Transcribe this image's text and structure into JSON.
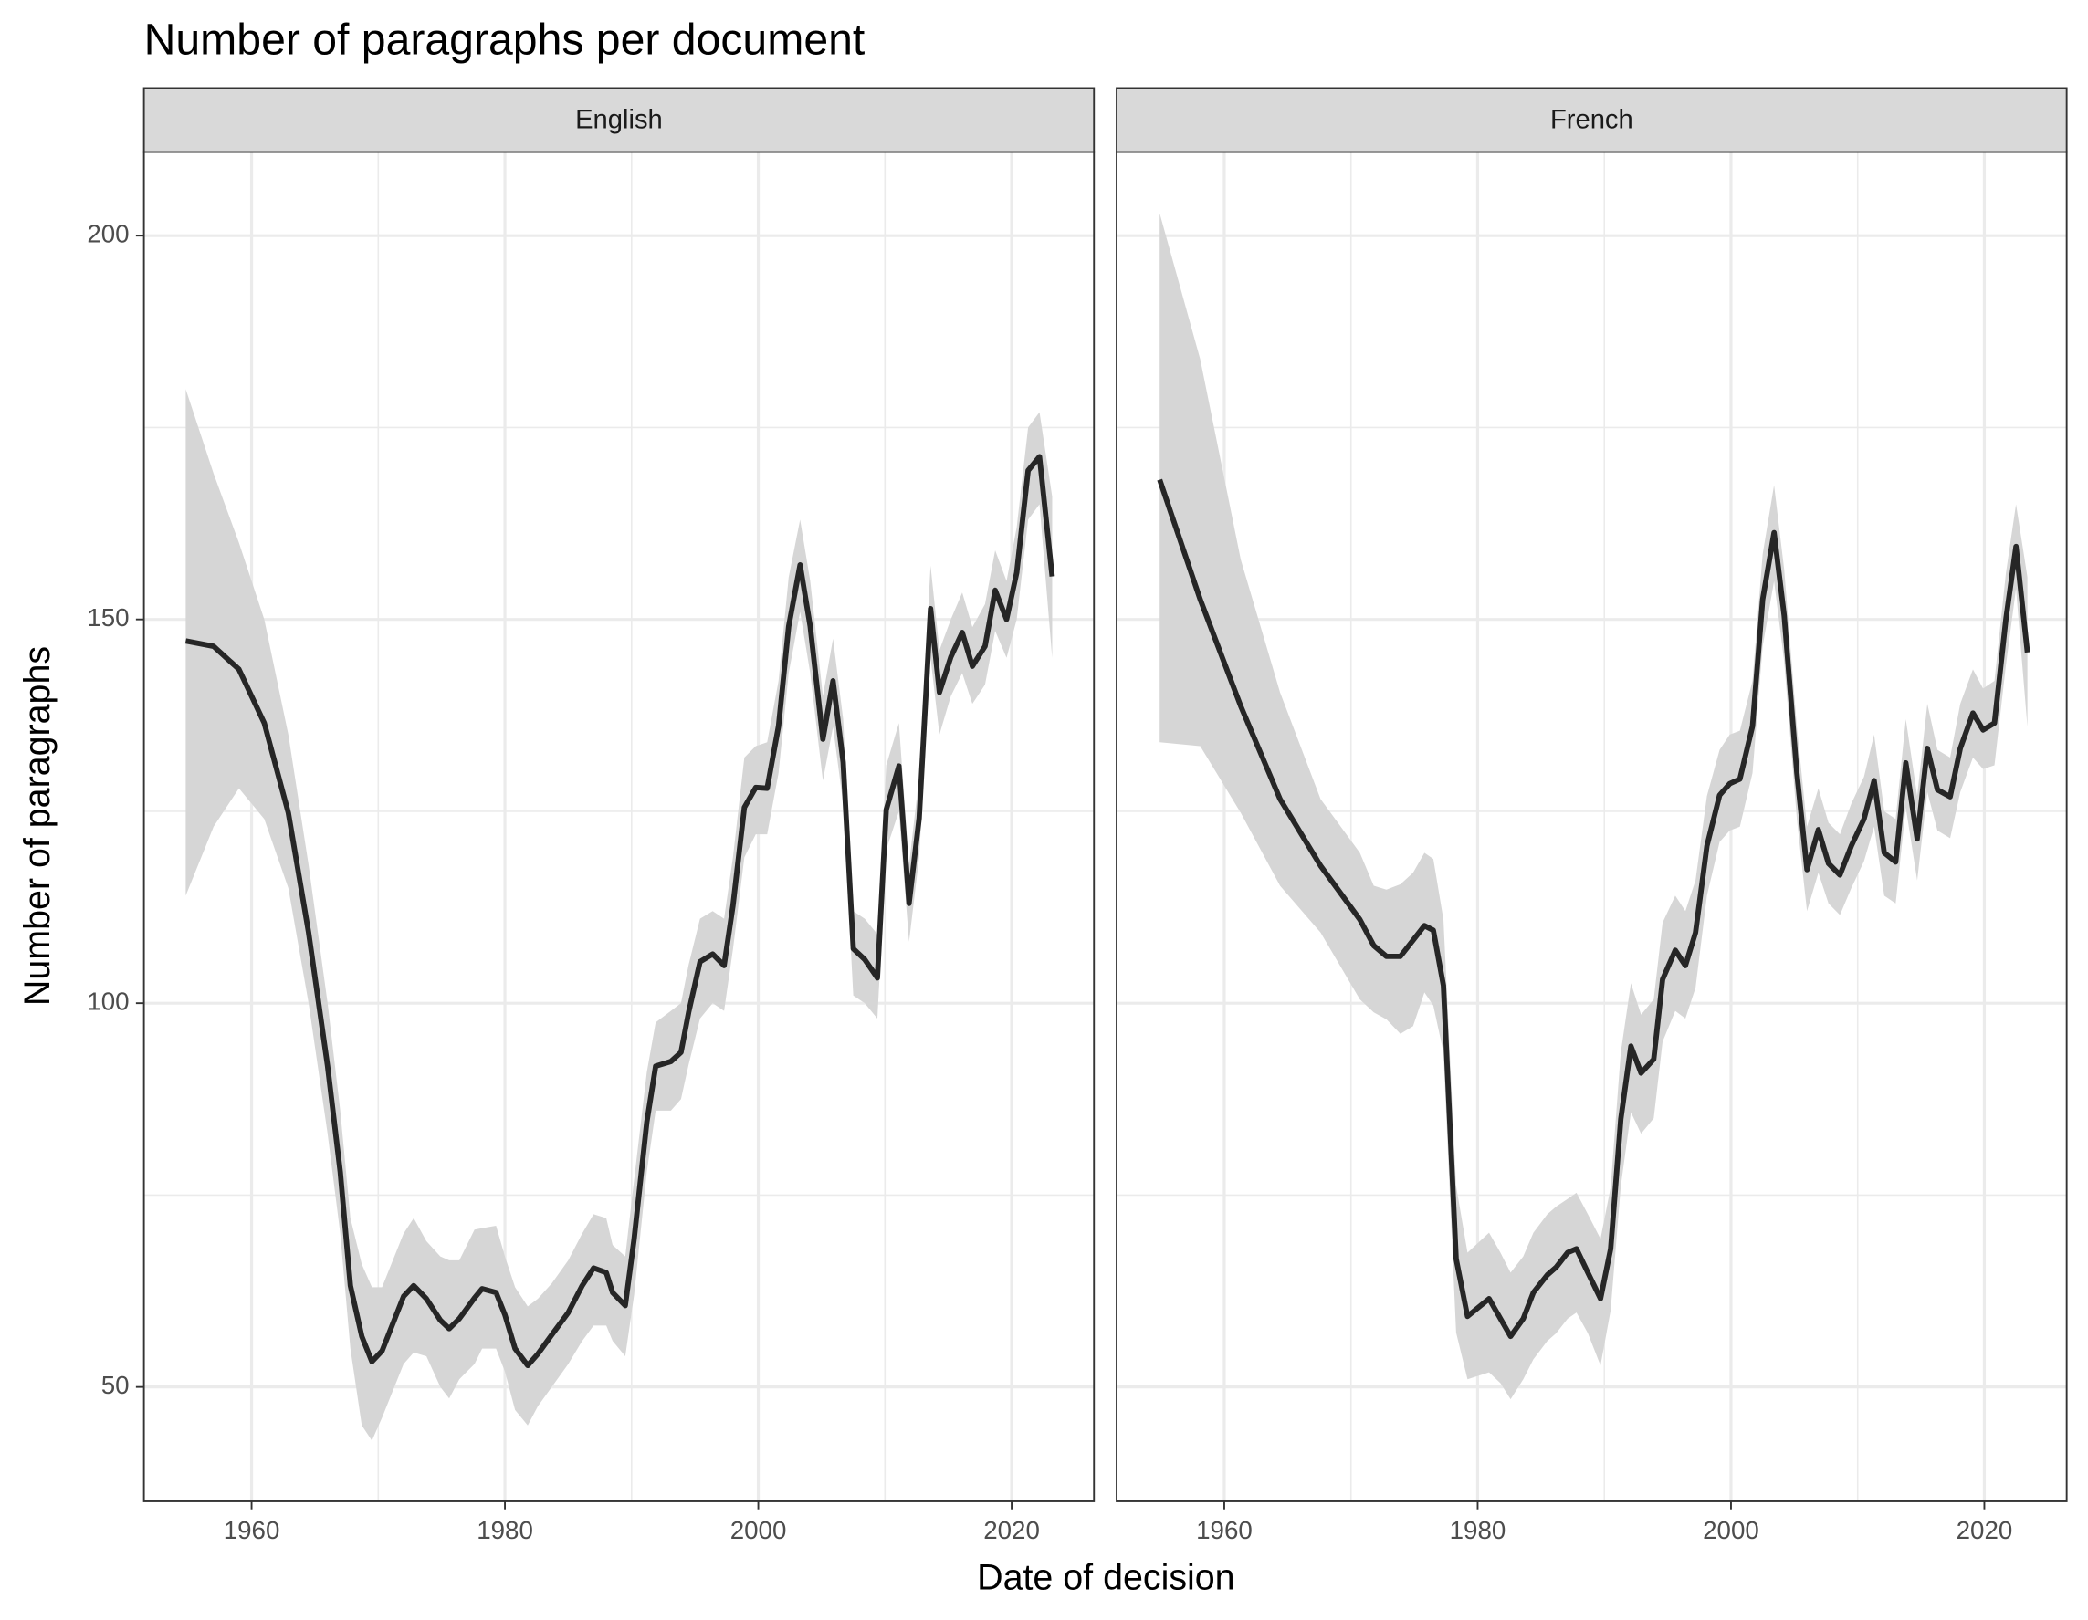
{
  "chart_data": {
    "type": "line",
    "title": "Number of paragraphs per document",
    "x_label": "Date of decision",
    "y_label": "Number of paragraphs",
    "xlim": [
      1951.5,
      2026.5
    ],
    "ylim": [
      35.1,
      210.9
    ],
    "xticks": [
      1960,
      1980,
      2000,
      2020
    ],
    "yticks": [
      50,
      100,
      150,
      200
    ],
    "x_minor_grid": [
      1970,
      1990,
      2010
    ],
    "y_minor_grid": [
      75,
      125,
      175
    ],
    "grid": true,
    "line_color": "#262626",
    "ribbon_color": "#d6d6d6",
    "facets": [
      {
        "name": "English",
        "x": [
          1954.8,
          1957,
          1959,
          1961,
          1962.9,
          1964.5,
          1966,
          1967,
          1967.8,
          1968.7,
          1969.5,
          1970.3,
          1972,
          1972.8,
          1973.8,
          1974.9,
          1975.6,
          1976.4,
          1977.6,
          1978.2,
          1979.3,
          1980,
          1980.8,
          1981.8,
          1982.6,
          1983.7,
          1985,
          1986.1,
          1987,
          1988,
          1988.5,
          1989.5,
          1990.2,
          1991.2,
          1991.9,
          1993.1,
          1993.9,
          1994.5,
          1995.4,
          1996.4,
          1997.3,
          1998,
          1998.9,
          1999.8,
          2000.7,
          2001.6,
          2002.4,
          2003.3,
          2004.1,
          2005.1,
          2005.9,
          2006.7,
          2007.5,
          2008.4,
          2009.4,
          2010.1,
          2011.1,
          2011.9,
          2012.7,
          2013.6,
          2014.3,
          2015.2,
          2016.1,
          2016.9,
          2017.9,
          2018.7,
          2019.6,
          2020.4,
          2021.3,
          2022.2,
          2023.2
        ],
        "values": [
          147.2,
          146.5,
          143.5,
          136.5,
          124.8,
          109.2,
          91.8,
          78,
          63.2,
          56.6,
          53.3,
          54.7,
          61.8,
          63.2,
          61.5,
          58.7,
          57.6,
          58.9,
          61.6,
          62.8,
          62.3,
          59.4,
          55,
          52.8,
          54.3,
          56.8,
          59.7,
          63.2,
          65.5,
          64.9,
          62.3,
          60.6,
          69.3,
          84.5,
          91.8,
          92.4,
          93.6,
          98.8,
          105.4,
          106.4,
          104.9,
          112.7,
          125.5,
          128.1,
          128,
          136.1,
          149.1,
          157.1,
          149.1,
          134.4,
          142,
          131.4,
          107.1,
          105.7,
          103.3,
          125.2,
          130.9,
          113,
          124.1,
          151.4,
          140.5,
          145.1,
          148.3,
          143.9,
          146.5,
          153.8,
          150,
          156.1,
          169.4,
          171.2,
          155.6
        ],
        "lower": [
          114,
          123,
          128,
          124,
          115,
          100,
          83,
          70,
          55,
          45,
          43,
          46,
          53,
          54.5,
          54,
          50,
          48.5,
          51,
          53,
          55,
          55,
          52,
          47,
          45,
          47.5,
          50,
          53,
          56,
          58,
          58,
          56,
          54,
          62,
          78,
          86,
          86,
          87.5,
          92,
          98,
          100,
          99,
          107,
          119,
          122,
          122,
          130,
          143,
          151,
          143,
          129,
          136,
          126,
          101,
          100,
          98,
          120,
          125,
          108,
          119,
          145,
          135,
          140,
          143,
          139,
          141.5,
          148.5,
          145,
          150,
          163,
          165,
          145
        ],
        "upper": [
          180,
          169,
          160,
          150,
          135,
          118,
          100,
          86,
          72,
          66,
          63,
          63,
          70,
          72,
          69,
          67,
          66.5,
          66.5,
          70.5,
          70.7,
          71,
          67,
          63,
          60.5,
          61.5,
          63.5,
          66.5,
          70,
          72.5,
          72,
          68.5,
          67,
          77,
          91,
          97.5,
          99,
          100,
          105,
          111,
          112,
          111,
          119,
          132,
          133.5,
          134,
          142,
          155.5,
          163,
          155,
          140,
          147.5,
          137,
          112,
          111,
          109,
          131,
          136.5,
          118,
          129.5,
          157,
          146,
          150,
          153.5,
          149,
          152,
          159,
          155,
          162,
          175,
          177,
          166
        ]
      },
      {
        "name": "French",
        "x": [
          1954.9,
          1958.1,
          1961.3,
          1964.4,
          1967.6,
          1970.7,
          1971.8,
          1972.8,
          1973.9,
          1974.9,
          1975.8,
          1976.5,
          1977.3,
          1978.3,
          1979.2,
          1980.9,
          1981.8,
          1982.6,
          1983.6,
          1984.4,
          1985.5,
          1986.2,
          1987.1,
          1987.8,
          1988.7,
          1989.7,
          1990.5,
          1991.3,
          1992.1,
          1992.9,
          1993.9,
          1994.6,
          1995.6,
          1996.4,
          1997.2,
          1998.1,
          1999.1,
          1999.9,
          2000.7,
          2001.7,
          2002.5,
          2003.4,
          2004.2,
          2005.2,
          2006,
          2006.9,
          2007.7,
          2008.6,
          2009.5,
          2010.5,
          2011.3,
          2012.1,
          2013,
          2013.8,
          2014.7,
          2015.5,
          2016.3,
          2017.3,
          2018.1,
          2019.1,
          2019.9,
          2020.8,
          2021.7,
          2022.5,
          2023.4
        ],
        "values": [
          168.2,
          152.6,
          138.7,
          126.6,
          117.9,
          110.9,
          107.5,
          106.1,
          106.1,
          108.2,
          110.1,
          109.5,
          102.3,
          66.7,
          59.2,
          61.5,
          58.9,
          56.6,
          58.9,
          62.3,
          64.6,
          65.6,
          67.5,
          68,
          64.9,
          61.5,
          68,
          84.9,
          94.4,
          90.9,
          92.7,
          103.1,
          106.9,
          104.9,
          109.2,
          120.5,
          127.1,
          128.6,
          129.2,
          136.1,
          152.6,
          161.3,
          150.5,
          130,
          117.4,
          122.6,
          118.2,
          116.7,
          120.5,
          124,
          129,
          119.6,
          118.4,
          131.3,
          121.4,
          133.2,
          127.8,
          126.9,
          133.2,
          137.8,
          135.6,
          136.5,
          150,
          159.5,
          145.7
        ],
        "lower": [
          134,
          133.5,
          124.8,
          115.3,
          109.2,
          100.5,
          98.8,
          97.9,
          96,
          97,
          101.4,
          99.7,
          93.6,
          57.1,
          51,
          51.9,
          50.5,
          48.4,
          51,
          53.6,
          56,
          57,
          58.9,
          59.7,
          57,
          52.8,
          60,
          76.2,
          85.8,
          83,
          85,
          95,
          99,
          98,
          102,
          114,
          121,
          122.5,
          123,
          130,
          146.5,
          155,
          144.5,
          124,
          112,
          117,
          113,
          111.5,
          115,
          118.5,
          123,
          114,
          113,
          125.5,
          116,
          127.5,
          122.5,
          121.5,
          127.5,
          132,
          130.5,
          131,
          144,
          154,
          136
        ],
        "upper": [
          202.9,
          183.9,
          157.8,
          140.5,
          126.6,
          119.6,
          115.3,
          114.8,
          115.5,
          117,
          119.6,
          118.8,
          110.9,
          76.2,
          67.5,
          70.1,
          67.5,
          64.9,
          67,
          70.1,
          72.5,
          73.5,
          74.5,
          75.3,
          72.5,
          69.3,
          76,
          93.6,
          102.6,
          98.5,
          100.5,
          110.5,
          114,
          112,
          116,
          127,
          133,
          135,
          135.5,
          142,
          158.5,
          167.5,
          156.5,
          136,
          123,
          128,
          123.5,
          122,
          126,
          129.5,
          135,
          125,
          124,
          137,
          127,
          139,
          133,
          132,
          139,
          143.5,
          141,
          142,
          156,
          165,
          155.5
        ]
      }
    ]
  }
}
